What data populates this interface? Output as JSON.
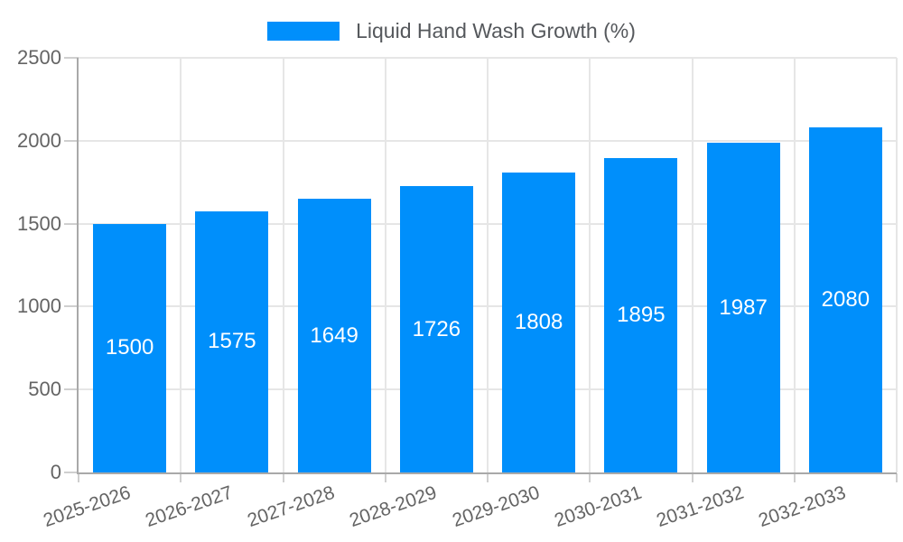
{
  "legend": {
    "label": "Liquid Hand Wash Growth (%)"
  },
  "colors": {
    "bar": "#008FFB",
    "grid": "#e6e6e6",
    "axis_line": "#a9a9a9",
    "tick": "#cfcfcf",
    "axis_text": "#646464",
    "legend_text": "#55585c",
    "value_text": "#ffffff",
    "background": "#ffffff"
  },
  "chart_data": {
    "type": "bar",
    "categories": [
      "2025-2026",
      "2026-2027",
      "2027-2028",
      "2028-2029",
      "2029-2030",
      "2030-2031",
      "2031-2032",
      "2032-2033"
    ],
    "series": [
      {
        "name": "Liquid Hand Wash Growth (%)",
        "values": [
          1500,
          1575,
          1649,
          1726,
          1808,
          1895,
          1987,
          2080
        ]
      }
    ],
    "title": "",
    "xlabel": "",
    "ylabel": "",
    "ylim": [
      0,
      2500
    ],
    "yticks": [
      0,
      500,
      1000,
      1500,
      2000,
      2500
    ],
    "grid": true,
    "legend_position": "top",
    "value_label_position": "inside-center",
    "xtick_rotation_deg": -19
  }
}
